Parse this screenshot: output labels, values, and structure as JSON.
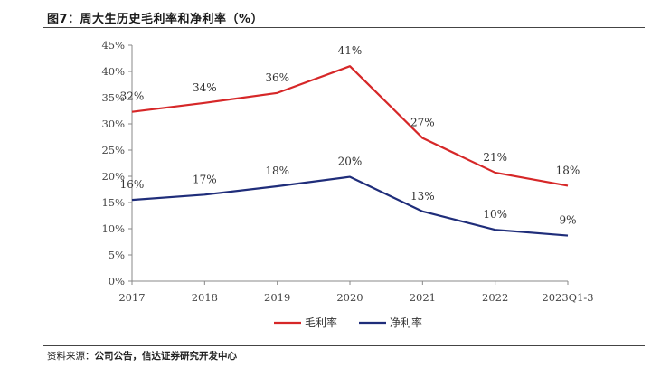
{
  "figure": {
    "title": "图7：周大生历史毛利率和净利率（%）",
    "source_label": "资料来源：",
    "source_text": "公司公告，信达证券研究开发中心"
  },
  "chart_data": {
    "type": "line",
    "title": "",
    "xlabel": "",
    "ylabel": "",
    "categories": [
      "2017",
      "2018",
      "2019",
      "2020",
      "2021",
      "2022",
      "2023Q1-3"
    ],
    "ylim": [
      0,
      45
    ],
    "yticks": [
      "0%",
      "5%",
      "10%",
      "15%",
      "20%",
      "25%",
      "30%",
      "35%",
      "40%",
      "45%"
    ],
    "legend_position": "bottom",
    "grid": false,
    "series": [
      {
        "name": "毛利率",
        "color": "#d62728",
        "values": [
          32.3,
          34,
          35.9,
          41,
          27.3,
          20.7,
          18.2
        ],
        "labels": [
          "32%",
          "34%",
          "36%",
          "41%",
          "27%",
          "21%",
          "18%"
        ]
      },
      {
        "name": "净利率",
        "color": "#1f2d7a",
        "values": [
          15.5,
          16.5,
          18.1,
          19.9,
          13.3,
          9.8,
          8.7
        ],
        "labels": [
          "16%",
          "17%",
          "18%",
          "20%",
          "13%",
          "10%",
          "9%"
        ]
      }
    ]
  }
}
